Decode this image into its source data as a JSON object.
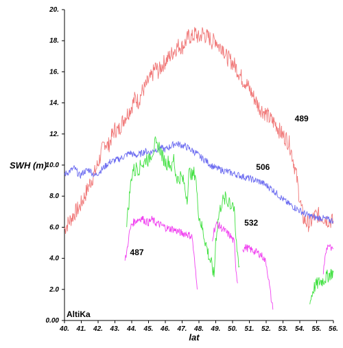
{
  "chart_data": {
    "type": "line",
    "xlabel": "lat",
    "ylabel": "SWH (m)",
    "xlim": [
      40,
      56
    ],
    "ylim": [
      0,
      20
    ],
    "x_ticks": [
      "40.",
      "41.",
      "42.",
      "43.",
      "44.",
      "45.",
      "46.",
      "47.",
      "48.",
      "49.",
      "50.",
      "51.",
      "52.",
      "53.",
      "54.",
      "55.",
      "56."
    ],
    "y_ticks": [
      "0.00",
      "2.0",
      "4.0",
      "6.0",
      "8.0",
      "10.0",
      "12.",
      "14.",
      "16.",
      "18.",
      "20."
    ],
    "annotation": "AltiKa",
    "series": [
      {
        "name": "489",
        "color": "#f07878",
        "points": [
          [
            40.0,
            5.9
          ],
          [
            40.3,
            6.4
          ],
          [
            40.6,
            6.9
          ],
          [
            40.9,
            7.3
          ],
          [
            41.2,
            8.0
          ],
          [
            41.5,
            8.8
          ],
          [
            41.8,
            9.5
          ],
          [
            42.0,
            10.1
          ],
          [
            42.2,
            10.8
          ],
          [
            42.4,
            11.5
          ],
          [
            42.6,
            11.2
          ],
          [
            42.8,
            11.8
          ],
          [
            43.0,
            12.3
          ],
          [
            43.2,
            12.2
          ],
          [
            43.4,
            12.7
          ],
          [
            43.6,
            13.1
          ],
          [
            43.8,
            13.4
          ],
          [
            44.0,
            13.8
          ],
          [
            44.2,
            14.3
          ],
          [
            44.4,
            14.1
          ],
          [
            44.6,
            14.7
          ],
          [
            44.8,
            15.0
          ],
          [
            45.0,
            15.4
          ],
          [
            45.2,
            15.7
          ],
          [
            45.4,
            16.3
          ],
          [
            45.6,
            16.0
          ],
          [
            45.8,
            16.4
          ],
          [
            46.0,
            16.7
          ],
          [
            46.2,
            16.9
          ],
          [
            46.4,
            17.2
          ],
          [
            46.6,
            17.5
          ],
          [
            46.8,
            17.7
          ],
          [
            47.0,
            17.6
          ],
          [
            47.2,
            17.9
          ],
          [
            47.4,
            18.3
          ],
          [
            47.6,
            18.2
          ],
          [
            47.8,
            18.5
          ],
          [
            48.0,
            18.1
          ],
          [
            48.2,
            18.5
          ],
          [
            48.4,
            18.3
          ],
          [
            48.6,
            18.2
          ],
          [
            48.8,
            17.9
          ],
          [
            49.0,
            18.1
          ],
          [
            49.2,
            17.6
          ],
          [
            49.4,
            17.7
          ],
          [
            49.6,
            17.0
          ],
          [
            49.8,
            16.8
          ],
          [
            50.0,
            16.6
          ],
          [
            50.2,
            16.3
          ],
          [
            50.4,
            15.9
          ],
          [
            50.6,
            15.5
          ],
          [
            50.8,
            15.3
          ],
          [
            51.0,
            14.9
          ],
          [
            51.2,
            14.5
          ],
          [
            51.4,
            14.1
          ],
          [
            51.6,
            13.7
          ],
          [
            51.8,
            13.5
          ],
          [
            52.0,
            13.3
          ],
          [
            52.2,
            13.0
          ],
          [
            52.4,
            12.8
          ],
          [
            52.6,
            12.6
          ],
          [
            52.8,
            12.2
          ],
          [
            53.0,
            11.9
          ],
          [
            53.2,
            11.7
          ],
          [
            53.4,
            11.3
          ],
          [
            53.6,
            10.4
          ],
          [
            53.8,
            9.3
          ],
          [
            54.0,
            7.8
          ],
          [
            54.2,
            6.6
          ],
          [
            54.4,
            6.3
          ],
          [
            54.6,
            6.2
          ],
          [
            54.8,
            6.6
          ],
          [
            55.0,
            6.8
          ],
          [
            55.3,
            6.7
          ],
          [
            55.6,
            6.5
          ],
          [
            55.9,
            6.4
          ],
          [
            56.0,
            6.3
          ]
        ]
      },
      {
        "name": "506",
        "color": "#6b6bf0",
        "points": [
          [
            40.0,
            9.4
          ],
          [
            40.3,
            9.6
          ],
          [
            40.6,
            9.8
          ],
          [
            40.9,
            9.3
          ],
          [
            41.2,
            9.6
          ],
          [
            41.5,
            9.7
          ],
          [
            41.8,
            9.3
          ],
          [
            42.1,
            9.6
          ],
          [
            42.4,
            9.9
          ],
          [
            42.7,
            10.2
          ],
          [
            43.0,
            10.3
          ],
          [
            43.3,
            10.4
          ],
          [
            43.6,
            10.6
          ],
          [
            43.9,
            10.8
          ],
          [
            44.2,
            10.6
          ],
          [
            44.5,
            10.7
          ],
          [
            44.8,
            10.9
          ],
          [
            45.1,
            10.8
          ],
          [
            45.4,
            11.0
          ],
          [
            45.7,
            11.1
          ],
          [
            46.0,
            11.0
          ],
          [
            46.3,
            11.2
          ],
          [
            46.6,
            11.4
          ],
          [
            46.9,
            11.3
          ],
          [
            47.2,
            11.2
          ],
          [
            47.5,
            11.0
          ],
          [
            47.8,
            10.8
          ],
          [
            48.1,
            10.5
          ],
          [
            48.4,
            10.3
          ],
          [
            48.7,
            10.0
          ],
          [
            49.0,
            9.8
          ],
          [
            49.3,
            9.7
          ],
          [
            49.6,
            9.6
          ],
          [
            49.9,
            9.5
          ],
          [
            50.2,
            9.4
          ],
          [
            50.5,
            9.3
          ],
          [
            50.8,
            9.2
          ],
          [
            51.1,
            9.1
          ],
          [
            51.4,
            9.0
          ],
          [
            51.7,
            8.9
          ],
          [
            52.0,
            8.7
          ],
          [
            52.3,
            8.5
          ],
          [
            52.6,
            8.2
          ],
          [
            52.9,
            7.9
          ],
          [
            53.2,
            7.6
          ],
          [
            53.5,
            7.4
          ],
          [
            53.8,
            7.2
          ],
          [
            54.1,
            7.0
          ],
          [
            54.4,
            6.8
          ],
          [
            54.7,
            6.7
          ],
          [
            55.0,
            6.6
          ],
          [
            55.3,
            6.6
          ],
          [
            55.6,
            6.5
          ],
          [
            56.0,
            6.4
          ]
        ]
      },
      {
        "name": "532",
        "color": "#3fe03f",
        "segments": [
          [
            [
              43.7,
              6.4
            ],
            [
              43.8,
              7.2
            ],
            [
              43.9,
              8.4
            ],
            [
              44.0,
              9.3
            ],
            [
              44.1,
              9.8
            ],
            [
              44.2,
              9.5
            ],
            [
              44.3,
              10.0
            ],
            [
              44.4,
              9.7
            ],
            [
              44.5,
              9.9
            ],
            [
              44.6,
              10.2
            ],
            [
              44.7,
              10.0
            ],
            [
              44.8,
              10.3
            ],
            [
              44.9,
              10.5
            ],
            [
              45.0,
              10.2
            ],
            [
              45.1,
              10.6
            ],
            [
              45.2,
              10.8
            ],
            [
              45.3,
              11.0
            ],
            [
              45.4,
              11.4
            ],
            [
              45.5,
              11.1
            ],
            [
              45.6,
              11.3
            ],
            [
              45.7,
              11.0
            ],
            [
              45.8,
              10.6
            ],
            [
              45.9,
              10.4
            ],
            [
              46.0,
              10.2
            ],
            [
              46.1,
              10.1
            ],
            [
              46.2,
              10.3
            ],
            [
              46.3,
              10.0
            ],
            [
              46.4,
              9.8
            ],
            [
              46.5,
              10.5
            ],
            [
              46.6,
              9.5
            ],
            [
              46.7,
              9.2
            ],
            [
              46.8,
              9.0
            ],
            [
              46.9,
              9.3
            ],
            [
              47.0,
              9.1
            ],
            [
              47.1,
              8.9
            ],
            [
              47.2,
              8.3
            ],
            [
              47.3,
              7.9
            ],
            [
              47.4,
              9.4
            ],
            [
              47.5,
              9.6
            ],
            [
              47.6,
              9.2
            ],
            [
              47.7,
              9.5
            ],
            [
              47.8,
              9.4
            ],
            [
              47.9,
              7.8
            ],
            [
              48.0,
              6.8
            ],
            [
              48.2,
              5.9
            ],
            [
              48.4,
              5.0
            ],
            [
              48.6,
              4.1
            ],
            [
              48.8,
              3.4
            ],
            [
              48.9,
              2.8
            ],
            [
              49.0,
              5.2
            ],
            [
              49.1,
              6.1
            ],
            [
              49.2,
              6.9
            ],
            [
              49.3,
              7.3
            ],
            [
              49.4,
              7.8
            ],
            [
              49.5,
              7.6
            ],
            [
              49.6,
              8.0
            ],
            [
              49.7,
              7.5
            ],
            [
              49.8,
              7.9
            ],
            [
              49.9,
              7.3
            ],
            [
              50.0,
              7.7
            ],
            [
              50.1,
              6.9
            ],
            [
              50.2,
              5.2
            ],
            [
              50.3,
              4.3
            ],
            [
              50.4,
              3.5
            ]
          ],
          [
            [
              54.6,
              1.1
            ],
            [
              54.7,
              1.6
            ],
            [
              54.8,
              2.0
            ],
            [
              54.9,
              2.2
            ],
            [
              55.0,
              2.3
            ],
            [
              55.2,
              2.5
            ],
            [
              55.4,
              2.6
            ],
            [
              55.6,
              2.8
            ],
            [
              55.8,
              3.0
            ],
            [
              56.0,
              3.1
            ]
          ]
        ]
      },
      {
        "name": "487",
        "color": "#f03ff0",
        "segments": [
          [
            [
              43.6,
              3.8
            ],
            [
              43.7,
              4.4
            ],
            [
              43.8,
              5.2
            ],
            [
              43.9,
              5.8
            ],
            [
              44.0,
              6.2
            ],
            [
              44.2,
              6.4
            ],
            [
              44.4,
              6.5
            ],
            [
              44.6,
              6.6
            ],
            [
              44.8,
              6.4
            ],
            [
              45.0,
              6.3
            ],
            [
              45.2,
              6.5
            ],
            [
              45.4,
              6.3
            ],
            [
              45.6,
              6.2
            ],
            [
              45.8,
              6.1
            ],
            [
              46.0,
              6.0
            ],
            [
              46.2,
              5.9
            ],
            [
              46.4,
              5.9
            ],
            [
              46.6,
              5.8
            ],
            [
              46.8,
              5.7
            ],
            [
              47.0,
              5.6
            ],
            [
              47.2,
              5.6
            ],
            [
              47.4,
              5.5
            ],
            [
              47.6,
              5.4
            ],
            [
              47.7,
              4.2
            ],
            [
              47.8,
              3.1
            ],
            [
              47.9,
              2.0
            ]
          ],
          [
            [
              48.8,
              5.3
            ],
            [
              48.9,
              5.8
            ],
            [
              49.0,
              6.1
            ],
            [
              49.1,
              6.2
            ],
            [
              49.3,
              6.0
            ],
            [
              49.5,
              5.8
            ],
            [
              49.7,
              5.6
            ],
            [
              49.9,
              5.4
            ],
            [
              50.1,
              5.0
            ],
            [
              50.2,
              3.4
            ],
            [
              50.3,
              2.4
            ]
          ],
          [
            [
              50.6,
              4.6
            ],
            [
              50.8,
              4.7
            ],
            [
              51.0,
              4.6
            ],
            [
              51.2,
              4.5
            ],
            [
              51.4,
              4.4
            ],
            [
              51.6,
              4.3
            ],
            [
              51.8,
              4.1
            ],
            [
              51.9,
              3.9
            ],
            [
              52.0,
              3.7
            ],
            [
              52.1,
              3.0
            ],
            [
              52.2,
              2.2
            ],
            [
              52.3,
              1.4
            ],
            [
              52.4,
              0.7
            ]
          ],
          [
            [
              55.4,
              3.2
            ],
            [
              55.5,
              4.0
            ],
            [
              55.6,
              4.6
            ],
            [
              55.7,
              4.9
            ],
            [
              55.8,
              4.7
            ],
            [
              55.9,
              4.5
            ],
            [
              56.0,
              4.6
            ]
          ]
        ]
      }
    ],
    "label_positions": {
      "489": [
        53.7,
        12.8
      ],
      "506": [
        51.4,
        9.7
      ],
      "532": [
        50.7,
        6.1
      ],
      "487": [
        43.9,
        4.2
      ]
    }
  }
}
